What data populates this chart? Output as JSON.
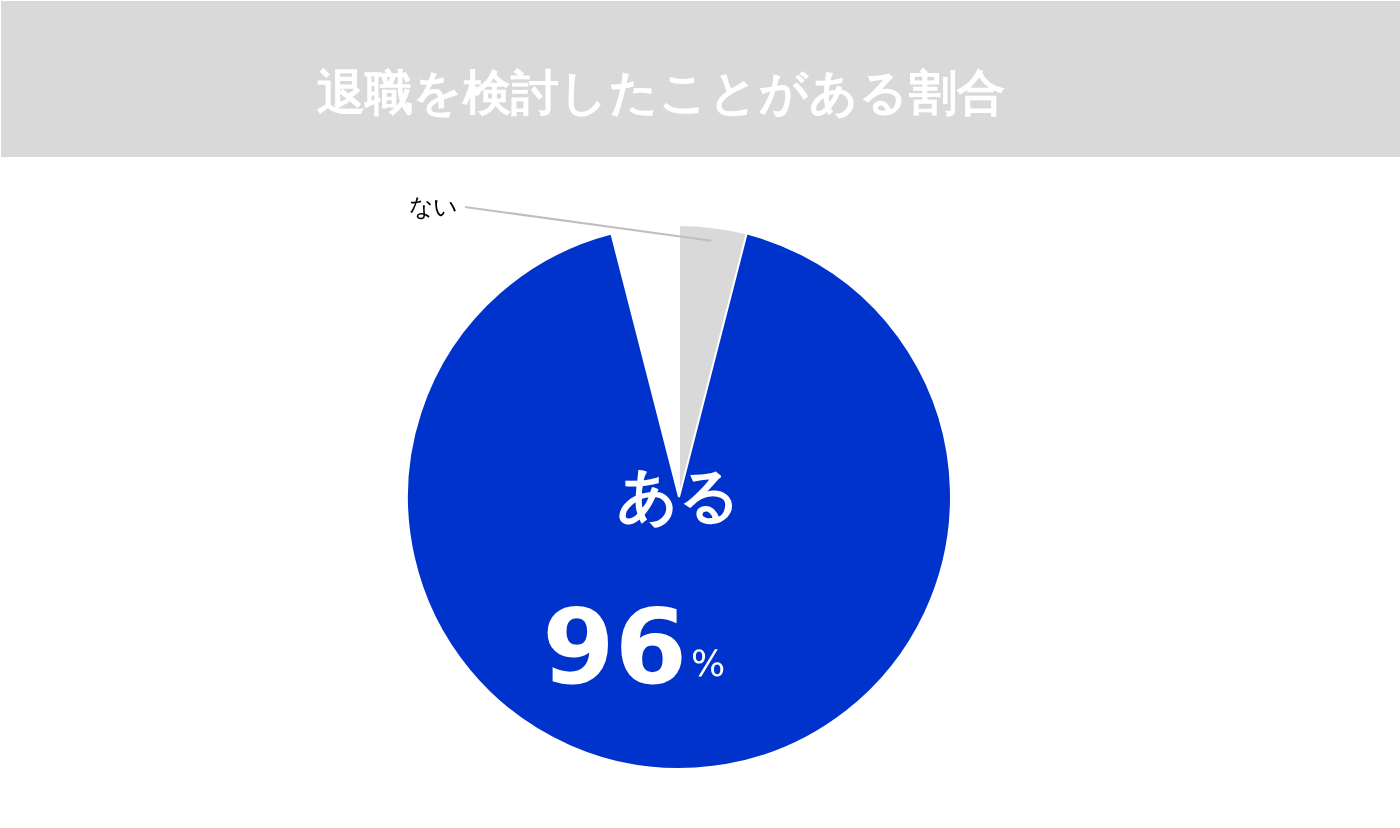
{
  "chart_data": {
    "type": "pie",
    "title": "退職を検討したことがある割合",
    "categories": [
      "ある",
      "ない"
    ],
    "values": [
      96,
      4
    ],
    "colors": [
      "#0033cc",
      "#d9d9d9"
    ],
    "value_labels": [
      "96%",
      null
    ]
  }
}
